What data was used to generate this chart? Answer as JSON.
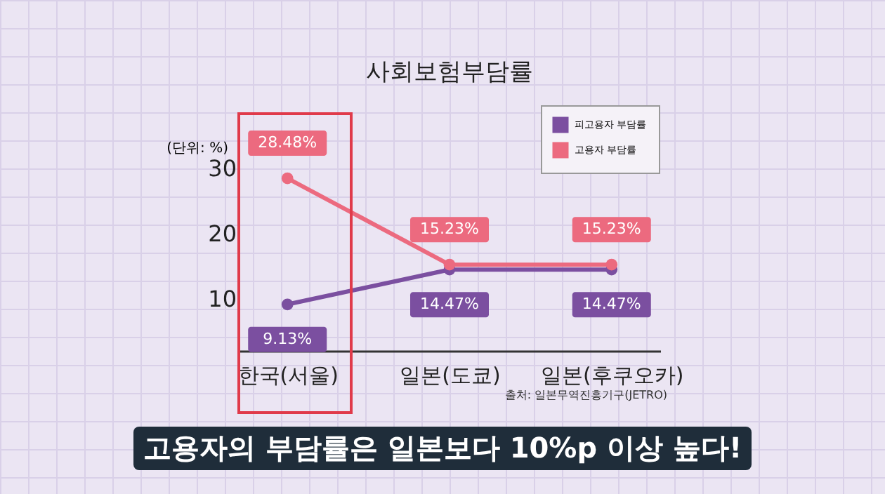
{
  "chart_data": {
    "type": "line",
    "title": "사회보험부담률",
    "ylabel": "(단위: %)",
    "categories": [
      "한국(서울)",
      "일본(도쿄)",
      "일본(후쿠오카)"
    ],
    "series": [
      {
        "name": "피고용자 부담률",
        "color": "#7b4fa0",
        "values": [
          9.13,
          14.47,
          14.47
        ],
        "value_labels": [
          "9.13%",
          "14.47%",
          "14.47%"
        ]
      },
      {
        "name": "고용자 부담률",
        "color": "#ec6a7f",
        "values": [
          28.48,
          15.23,
          15.23
        ],
        "value_labels": [
          "28.48%",
          "15.23%",
          "15.23%"
        ]
      }
    ],
    "ylim": [
      2,
      30
    ],
    "yticks": [
      10,
      20,
      30
    ],
    "grid": false,
    "legend": "top right",
    "marker": "circle",
    "line_style": "solid",
    "annotations": [
      "출처: 일본무역진흥기구(JETRO)",
      "고용자의 부담률은 일본보다 10%p 이상 높다!"
    ]
  }
}
